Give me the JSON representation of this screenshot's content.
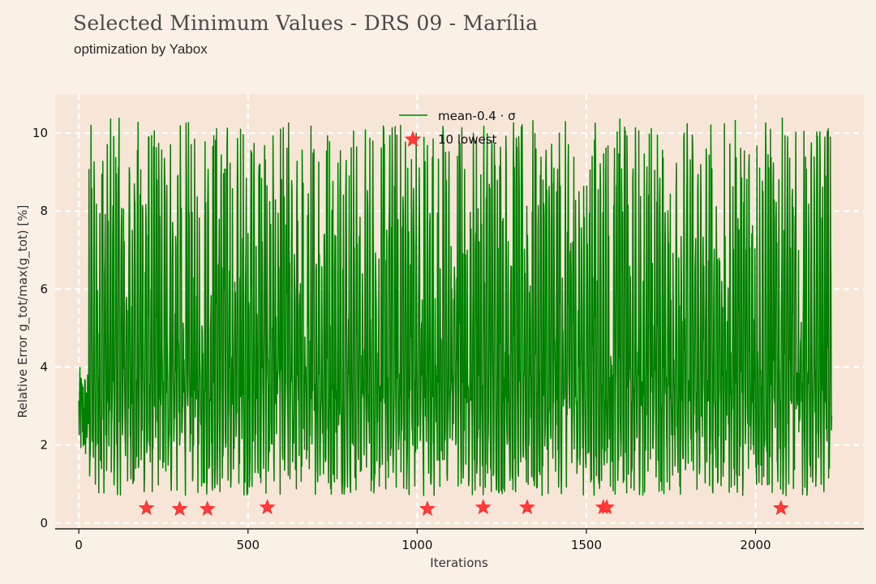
{
  "header": {
    "title": "Selected Minimum Values - DRS 09 - Marília",
    "subtitle": "optimization by Yabox"
  },
  "colors": {
    "background": "#fbf0e5",
    "plot_background": "#f7e6d8",
    "grid": "#ffffff",
    "line": "#008000",
    "marker": "#ff2a2a"
  },
  "chart_data": {
    "type": "line",
    "title": "Selected Minimum Values - DRS 09 - Marília",
    "subtitle": "optimization by Yabox",
    "xlabel": "Iterations",
    "ylabel": "Relative Error g_tot/max(g_tot) [%]",
    "xlim": [
      -70,
      2320
    ],
    "ylim": [
      -0.15,
      11.0
    ],
    "x_ticks": [
      0,
      500,
      1000,
      1500,
      2000
    ],
    "y_ticks": [
      0,
      2,
      4,
      6,
      8,
      10
    ],
    "grid": true,
    "legend_position": "top-center",
    "series": [
      {
        "name": "mean-0.4 · σ",
        "kind": "line",
        "color": "#008000",
        "x_range": [
          0,
          2225
        ],
        "y_range_approx": [
          0.4,
          10.4
        ],
        "points_approx": 2226
      },
      {
        "name": "10 lowest",
        "kind": "scatter",
        "marker": "star",
        "color": "#ff2a2a",
        "x": [
          200,
          298,
          380,
          557,
          1030,
          1195,
          1325,
          1550,
          1560,
          2075
        ],
        "y": [
          0.38,
          0.36,
          0.36,
          0.4,
          0.36,
          0.4,
          0.4,
          0.4,
          0.4,
          0.38
        ]
      }
    ]
  }
}
